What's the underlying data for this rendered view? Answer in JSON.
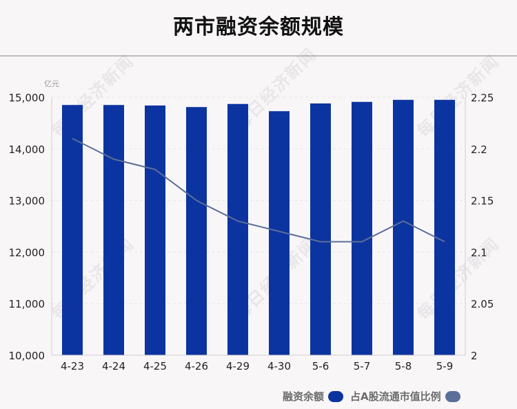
{
  "title": "两市融资余额规模",
  "watermark": "每日经济新闻",
  "colors": {
    "bar": "#0c34a0",
    "line": "#5b6e9a",
    "axis": "#cfcfcf",
    "grid": "#e6e6e6",
    "text": "#222222"
  },
  "chart_data": {
    "type": "bar",
    "title": "两市融资余额规模",
    "categories": [
      "4-23",
      "4-24",
      "4-25",
      "4-26",
      "4-29",
      "4-30",
      "5-6",
      "5-7",
      "5-8",
      "5-9"
    ],
    "y_left_unit": "亿元",
    "ylim_left": [
      10000,
      15000
    ],
    "yticks_left": [
      10000,
      11000,
      12000,
      13000,
      14000,
      15000
    ],
    "yticks_left_labels": [
      "10,000",
      "11,000",
      "12,000",
      "13,000",
      "14,000",
      "15,000"
    ],
    "ylim_right": [
      2,
      2.25
    ],
    "yticks_right": [
      2,
      2.05,
      2.1,
      2.15,
      2.2,
      2.25
    ],
    "yticks_right_labels": [
      "2",
      "2.05",
      "2.1",
      "2.15",
      "2.2",
      "2.25"
    ],
    "grid": "dashed-horizontal",
    "legend_position": "bottom-right",
    "series": [
      {
        "name": "融资余额",
        "type": "bar",
        "axis": "left",
        "values": [
          14850,
          14850,
          14840,
          14810,
          14870,
          14730,
          14880,
          14910,
          14950,
          14950
        ]
      },
      {
        "name": "占A股流通市值比例",
        "type": "line",
        "axis": "right",
        "values": [
          2.21,
          2.19,
          2.18,
          2.15,
          2.13,
          2.12,
          2.11,
          2.11,
          2.13,
          2.11
        ]
      }
    ]
  }
}
